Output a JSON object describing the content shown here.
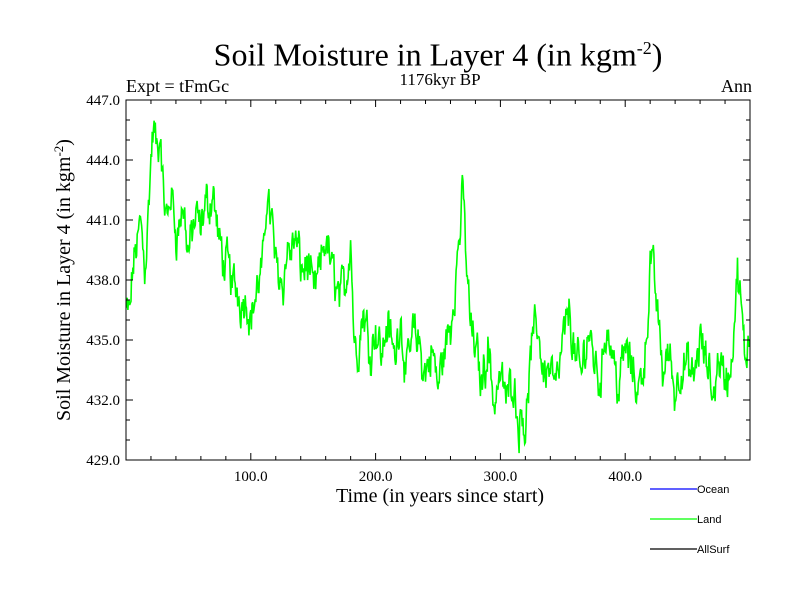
{
  "chart_data": {
    "type": "line",
    "title_main": "Soil Moisture in Layer 4 (in kgm",
    "title_sup": "-2",
    "title_end": ")",
    "subtitle": "1176kyr BP",
    "left_label": "Expt = tFmGc",
    "right_label": "Ann",
    "xlabel": "Time (in years since start)",
    "ylabel_main": "Soil Moisture in Layer 4 (in kgm",
    "ylabel_sup": "-2",
    "ylabel_end": ")",
    "xlim": [
      0,
      500
    ],
    "ylim": [
      429.0,
      447.0
    ],
    "x_ticks": [
      100,
      200,
      300,
      400
    ],
    "x_tick_labels": [
      "100.0",
      "200.0",
      "300.0",
      "400.0"
    ],
    "y_ticks": [
      429,
      432,
      435,
      438,
      441,
      444,
      447
    ],
    "y_tick_labels": [
      "429.0",
      "432.0",
      "435.0",
      "438.0",
      "441.0",
      "444.0",
      "447.0"
    ],
    "legend": [
      {
        "name": "Ocean",
        "color": "#0000ff"
      },
      {
        "name": "Land",
        "color": "#00ff00"
      },
      {
        "name": "AllSurf",
        "color": "#000000"
      }
    ],
    "series": [
      {
        "name": "Land",
        "color": "#00ff00",
        "anchors_x": [
          0,
          3,
          5,
          8,
          12,
          15,
          18,
          20,
          22,
          25,
          28,
          30,
          33,
          36,
          40,
          45,
          50,
          55,
          60,
          65,
          70,
          75,
          80,
          85,
          90,
          95,
          100,
          105,
          110,
          113,
          116,
          120,
          125,
          130,
          135,
          140,
          145,
          150,
          155,
          160,
          165,
          170,
          175,
          178,
          180,
          183,
          186,
          190,
          195,
          200,
          205,
          210,
          215,
          220,
          225,
          230,
          235,
          240,
          245,
          250,
          255,
          260,
          264,
          268,
          270,
          273,
          276,
          280,
          285,
          290,
          295,
          300,
          305,
          310,
          315,
          318,
          320,
          322,
          325,
          330,
          335,
          340,
          345,
          350,
          355,
          360,
          365,
          370,
          375,
          380,
          385,
          390,
          395,
          400,
          405,
          410,
          415,
          418,
          420,
          425,
          430,
          435,
          440,
          445,
          450,
          455,
          460,
          465,
          470,
          475,
          480,
          485,
          488,
          490,
          493,
          496,
          500
        ],
        "anchors_y": [
          436.5,
          435.8,
          438.0,
          439.5,
          441.0,
          439.0,
          442.0,
          444.2,
          445.5,
          444.0,
          444.8,
          441.5,
          440.5,
          442.5,
          440.5,
          441.5,
          439.5,
          441.0,
          440.0,
          441.5,
          442.5,
          439.5,
          438.5,
          438.0,
          437.5,
          437.5,
          436.5,
          437.5,
          438.5,
          442.5,
          441.5,
          439.0,
          438.5,
          439.5,
          440.0,
          438.5,
          439.0,
          437.0,
          438.0,
          440.0,
          438.5,
          437.5,
          437.5,
          439.0,
          440.5,
          435.0,
          434.5,
          436.5,
          435.0,
          436.0,
          434.5,
          436.0,
          434.0,
          436.5,
          433.0,
          435.5,
          434.5,
          433.0,
          434.5,
          432.5,
          434.5,
          435.5,
          438.0,
          441.0,
          442.5,
          438.5,
          436.0,
          434.5,
          433.0,
          435.0,
          432.0,
          433.5,
          432.0,
          433.5,
          431.0,
          432.0,
          430.8,
          432.5,
          434.5,
          435.5,
          433.5,
          434.0,
          433.0,
          434.5,
          436.5,
          434.0,
          433.0,
          435.5,
          434.5,
          433.0,
          436.0,
          434.5,
          433.0,
          434.5,
          433.5,
          432.5,
          434.0,
          436.5,
          439.0,
          437.0,
          433.5,
          434.5,
          432.5,
          434.0,
          433.5,
          432.5,
          435.0,
          433.5,
          432.0,
          434.5,
          433.0,
          433.5,
          436.5,
          438.0,
          436.0,
          433.5,
          435.5
        ],
        "resolution_years": 0.5,
        "noise_amplitude": 1.6
      }
    ]
  }
}
